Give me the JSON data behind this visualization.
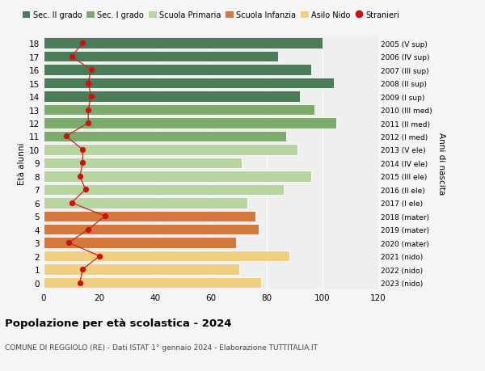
{
  "ages": [
    18,
    17,
    16,
    15,
    14,
    13,
    12,
    11,
    10,
    9,
    8,
    7,
    6,
    5,
    4,
    3,
    2,
    1,
    0
  ],
  "right_labels": [
    "2005 (V sup)",
    "2006 (IV sup)",
    "2007 (III sup)",
    "2008 (II sup)",
    "2009 (I sup)",
    "2010 (III med)",
    "2011 (II med)",
    "2012 (I med)",
    "2013 (V ele)",
    "2014 (IV ele)",
    "2015 (III ele)",
    "2016 (II ele)",
    "2017 (I ele)",
    "2018 (mater)",
    "2019 (mater)",
    "2020 (mater)",
    "2021 (nido)",
    "2022 (nido)",
    "2023 (nido)"
  ],
  "bar_values": [
    100,
    84,
    96,
    104,
    92,
    97,
    105,
    87,
    91,
    71,
    96,
    86,
    73,
    76,
    77,
    69,
    88,
    70,
    78
  ],
  "stranieri_values": [
    14,
    10,
    17,
    16,
    17,
    16,
    16,
    8,
    14,
    14,
    13,
    15,
    10,
    22,
    16,
    9,
    20,
    14,
    13
  ],
  "bar_colors": [
    "#4a7c59",
    "#4a7c59",
    "#4a7c59",
    "#4a7c59",
    "#4a7c59",
    "#7dab6e",
    "#7dab6e",
    "#7dab6e",
    "#b8d4a0",
    "#b8d4a0",
    "#b8d4a0",
    "#b8d4a0",
    "#b8d4a0",
    "#d4783c",
    "#d4783c",
    "#d4783c",
    "#f0d080",
    "#f0d080",
    "#f0d080"
  ],
  "legend_labels": [
    "Sec. II grado",
    "Sec. I grado",
    "Scuola Primaria",
    "Scuola Infanzia",
    "Asilo Nido",
    "Stranieri"
  ],
  "legend_colors": [
    "#4a7c59",
    "#7dab6e",
    "#b8d4a0",
    "#d4783c",
    "#f0d080",
    "#cc1111"
  ],
  "title": "Popolazione per età scolastica - 2024",
  "subtitle": "COMUNE DI REGGIOLO (RE) - Dati ISTAT 1° gennaio 2024 - Elaborazione TUTTITALIA.IT",
  "ylabel": "Età alunni",
  "right_ylabel": "Anni di nascita",
  "xlim": [
    0,
    120
  ],
  "xticks": [
    0,
    20,
    40,
    60,
    80,
    100,
    120
  ],
  "bg_color": "#f5f5f5",
  "plot_bg_color": "#efefef",
  "stranieri_line_color": "#cc2222",
  "stranieri_dot_color": "#cc1111"
}
